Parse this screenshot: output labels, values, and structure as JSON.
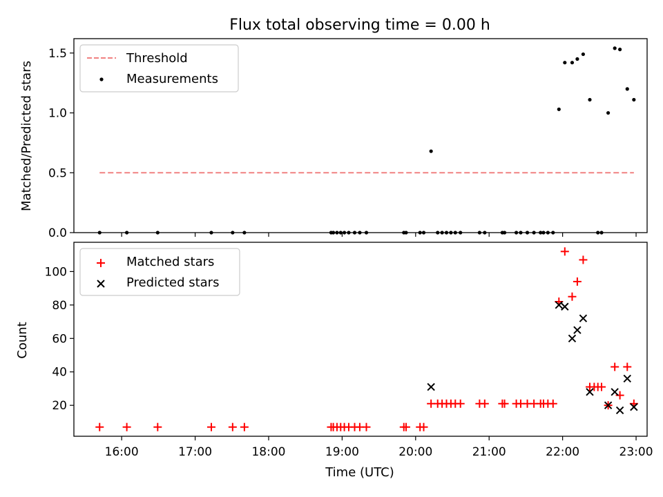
{
  "figure": {
    "title": "Flux total observing time = 0.00 h",
    "xlabel": "Time (UTC)"
  },
  "chart_data": [
    {
      "type": "scatter",
      "panel": "top",
      "ylabel": "Matched/Predicted stars",
      "xlim_hours": [
        15.35,
        23.15
      ],
      "ylim": [
        0,
        1.62
      ],
      "yticks": [
        {
          "value": 0.0,
          "label": "0.0"
        },
        {
          "value": 0.5,
          "label": "0.5"
        },
        {
          "value": 1.0,
          "label": "1.0"
        },
        {
          "value": 1.5,
          "label": "1.5"
        }
      ],
      "threshold": {
        "name": "Threshold",
        "value": 0.5,
        "x_start": 15.7,
        "x_end": 22.97,
        "color": "#f08080"
      },
      "legend": {
        "location": "upper-left",
        "entries": [
          "Threshold",
          "Measurements"
        ]
      },
      "series": [
        {
          "name": "Measurements",
          "color": "#000000",
          "points": [
            [
              15.7,
              0
            ],
            [
              16.07,
              0
            ],
            [
              16.49,
              0
            ],
            [
              17.22,
              0
            ],
            [
              17.51,
              0
            ],
            [
              17.67,
              0
            ],
            [
              18.85,
              0
            ],
            [
              18.88,
              0
            ],
            [
              18.93,
              0
            ],
            [
              18.98,
              0
            ],
            [
              19.03,
              0
            ],
            [
              19.09,
              0
            ],
            [
              19.17,
              0
            ],
            [
              19.24,
              0
            ],
            [
              19.33,
              0
            ],
            [
              19.84,
              0
            ],
            [
              19.87,
              0
            ],
            [
              20.06,
              0
            ],
            [
              20.11,
              0
            ],
            [
              20.21,
              0.68
            ],
            [
              20.3,
              0
            ],
            [
              20.36,
              0
            ],
            [
              20.42,
              0
            ],
            [
              20.48,
              0
            ],
            [
              20.54,
              0
            ],
            [
              20.61,
              0
            ],
            [
              20.87,
              0
            ],
            [
              20.94,
              0
            ],
            [
              21.18,
              0
            ],
            [
              21.21,
              0
            ],
            [
              21.37,
              0
            ],
            [
              21.43,
              0
            ],
            [
              21.52,
              0
            ],
            [
              21.61,
              0
            ],
            [
              21.7,
              0
            ],
            [
              21.74,
              0
            ],
            [
              21.8,
              0
            ],
            [
              21.87,
              0
            ],
            [
              21.95,
              1.03
            ],
            [
              22.03,
              1.42
            ],
            [
              22.13,
              1.42
            ],
            [
              22.2,
              1.45
            ],
            [
              22.28,
              1.49
            ],
            [
              22.37,
              1.11
            ],
            [
              22.48,
              0
            ],
            [
              22.53,
              0
            ],
            [
              22.62,
              1.0
            ],
            [
              22.71,
              1.54
            ],
            [
              22.78,
              1.53
            ],
            [
              22.88,
              1.2
            ],
            [
              22.97,
              1.11
            ]
          ]
        }
      ]
    },
    {
      "type": "scatter",
      "panel": "bottom",
      "ylabel": "Count",
      "xlabel": "Time (UTC)",
      "xlim_hours": [
        15.35,
        23.15
      ],
      "ylim": [
        1.5,
        117.5
      ],
      "yticks": [
        {
          "value": 20,
          "label": "20"
        },
        {
          "value": 40,
          "label": "40"
        },
        {
          "value": 60,
          "label": "60"
        },
        {
          "value": 80,
          "label": "80"
        },
        {
          "value": 100,
          "label": "100"
        }
      ],
      "xticks": [
        {
          "value": 16,
          "label": "16:00"
        },
        {
          "value": 17,
          "label": "17:00"
        },
        {
          "value": 18,
          "label": "18:00"
        },
        {
          "value": 19,
          "label": "19:00"
        },
        {
          "value": 20,
          "label": "20:00"
        },
        {
          "value": 21,
          "label": "21:00"
        },
        {
          "value": 22,
          "label": "22:00"
        },
        {
          "value": 23,
          "label": "23:00"
        }
      ],
      "legend": {
        "location": "upper-left",
        "entries": [
          "Matched stars",
          "Predicted stars"
        ]
      },
      "series": [
        {
          "name": "Matched stars",
          "color": "#ff0000",
          "marker": "plus",
          "points": [
            [
              15.7,
              7
            ],
            [
              16.07,
              7
            ],
            [
              16.49,
              7
            ],
            [
              17.22,
              7
            ],
            [
              17.51,
              7
            ],
            [
              17.67,
              7
            ],
            [
              18.85,
              7
            ],
            [
              18.88,
              7
            ],
            [
              18.93,
              7
            ],
            [
              18.98,
              7
            ],
            [
              19.03,
              7
            ],
            [
              19.09,
              7
            ],
            [
              19.17,
              7
            ],
            [
              19.24,
              7
            ],
            [
              19.33,
              7
            ],
            [
              19.84,
              7
            ],
            [
              19.87,
              7
            ],
            [
              20.06,
              7
            ],
            [
              20.11,
              7
            ],
            [
              20.21,
              21
            ],
            [
              20.3,
              21
            ],
            [
              20.36,
              21
            ],
            [
              20.42,
              21
            ],
            [
              20.48,
              21
            ],
            [
              20.54,
              21
            ],
            [
              20.61,
              21
            ],
            [
              20.87,
              21
            ],
            [
              20.94,
              21
            ],
            [
              21.18,
              21
            ],
            [
              21.21,
              21
            ],
            [
              21.37,
              21
            ],
            [
              21.43,
              21
            ],
            [
              21.52,
              21
            ],
            [
              21.61,
              21
            ],
            [
              21.7,
              21
            ],
            [
              21.74,
              21
            ],
            [
              21.8,
              21
            ],
            [
              21.87,
              21
            ],
            [
              21.95,
              82
            ],
            [
              22.03,
              112
            ],
            [
              22.13,
              85
            ],
            [
              22.2,
              94
            ],
            [
              22.28,
              107
            ],
            [
              22.37,
              31
            ],
            [
              22.43,
              31
            ],
            [
              22.48,
              31
            ],
            [
              22.53,
              31
            ],
            [
              22.62,
              20
            ],
            [
              22.71,
              43
            ],
            [
              22.78,
              26
            ],
            [
              22.88,
              43
            ],
            [
              22.97,
              21
            ]
          ]
        },
        {
          "name": "Predicted stars",
          "color": "#000000",
          "marker": "x",
          "points": [
            [
              20.21,
              31
            ],
            [
              21.95,
              80
            ],
            [
              22.03,
              79
            ],
            [
              22.13,
              60
            ],
            [
              22.2,
              65
            ],
            [
              22.28,
              72
            ],
            [
              22.37,
              28
            ],
            [
              22.62,
              20
            ],
            [
              22.71,
              28
            ],
            [
              22.78,
              17
            ],
            [
              22.88,
              36
            ],
            [
              22.97,
              19
            ]
          ]
        }
      ]
    }
  ]
}
